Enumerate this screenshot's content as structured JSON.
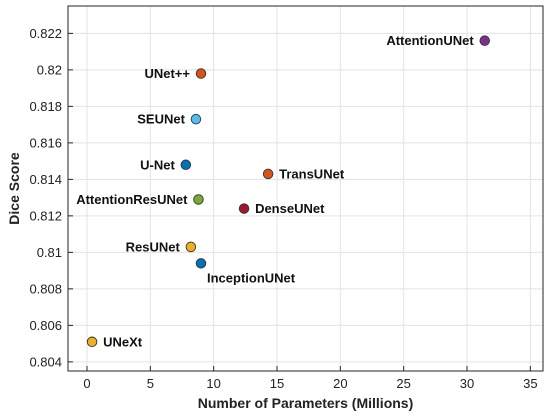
{
  "chart_data": {
    "type": "scatter",
    "xlabel": "Number of Parameters (Millions)",
    "ylabel": "Dice Score",
    "xlim": [
      -1.5,
      36
    ],
    "ylim": [
      0.8035,
      0.8235
    ],
    "x_ticks": [
      0,
      5,
      10,
      15,
      20,
      25,
      30,
      35
    ],
    "y_ticks": [
      0.804,
      0.806,
      0.808,
      0.81,
      0.812,
      0.814,
      0.816,
      0.818,
      0.82,
      0.822
    ],
    "grid": true,
    "legend": "none",
    "points": [
      {
        "label": "AttentionUNet",
        "x": 31.4,
        "y": 0.8216,
        "color": "#7e2f8e",
        "label_side": "left"
      },
      {
        "label": "UNet++",
        "x": 9.0,
        "y": 0.8198,
        "color": "#d95319",
        "label_side": "left"
      },
      {
        "label": "SEUNet",
        "x": 8.6,
        "y": 0.8173,
        "color": "#4dbeee",
        "label_side": "left"
      },
      {
        "label": "U-Net",
        "x": 7.8,
        "y": 0.8148,
        "color": "#0072bd",
        "label_side": "left"
      },
      {
        "label": "TransUNet",
        "x": 14.3,
        "y": 0.8143,
        "color": "#d95319",
        "label_side": "right"
      },
      {
        "label": "AttentionResUNet",
        "x": 8.8,
        "y": 0.8129,
        "color": "#77ac30",
        "label_side": "left"
      },
      {
        "label": "DenseUNet",
        "x": 12.4,
        "y": 0.8124,
        "color": "#a2142f",
        "label_side": "right"
      },
      {
        "label": "ResUNet",
        "x": 8.2,
        "y": 0.8103,
        "color": "#edb120",
        "label_side": "left"
      },
      {
        "label": "InceptionUNet",
        "x": 9.0,
        "y": 0.8094,
        "color": "#0072bd",
        "label_side": "below"
      },
      {
        "label": "UNeXt",
        "x": 0.4,
        "y": 0.8051,
        "color": "#edb120",
        "label_side": "right"
      }
    ]
  }
}
